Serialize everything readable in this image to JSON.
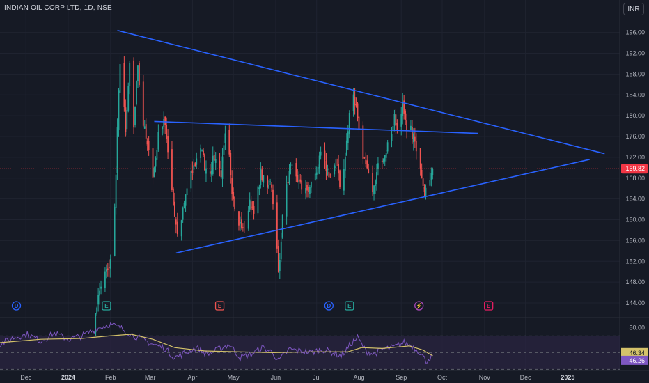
{
  "header": {
    "title": "INDIAN OIL CORP LTD, 1D, NSE",
    "currency": "INR"
  },
  "colors": {
    "up": "#26a69a",
    "down": "#ef5350",
    "trendline": "#2962ff",
    "rsi_line": "#7e57c2",
    "rsi_ma": "#d4c26a",
    "rsi_band": "#2a2440",
    "price_tag": "#f23645",
    "background": "#161a25",
    "grid": "#1f2330"
  },
  "chart_data": [
    {
      "type": "candlestick",
      "title": "INDIAN OIL CORP LTD, 1D, NSE",
      "ylim": [
        142,
        198.5
      ],
      "y_ticks": [
        144,
        148,
        152,
        156,
        160,
        164,
        168,
        172,
        176,
        180,
        184,
        188,
        192,
        196
      ],
      "y_tick_labels": [
        "144.00",
        "148.00",
        "152.00",
        "156.00",
        "160.00",
        "164.00",
        "168.00",
        "172.00",
        "176.00",
        "180.00",
        "184.00",
        "188.00",
        "192.00",
        "196.00"
      ],
      "x_labels": [
        {
          "label": "Dec",
          "day": 19
        },
        {
          "label": "2024",
          "day": 50,
          "bold": true
        },
        {
          "label": "Feb",
          "day": 81
        },
        {
          "label": "Mar",
          "day": 110
        },
        {
          "label": "Apr",
          "day": 141
        },
        {
          "label": "May",
          "day": 171
        },
        {
          "label": "Jun",
          "day": 202
        },
        {
          "label": "Jul",
          "day": 232
        },
        {
          "label": "Aug",
          "day": 263
        },
        {
          "label": "Sep",
          "day": 294
        },
        {
          "label": "Oct",
          "day": 324
        },
        {
          "label": "Nov",
          "day": 355
        },
        {
          "label": "Dec",
          "day": 385
        },
        {
          "label": "2025",
          "day": 416,
          "bold": true
        }
      ],
      "last_price": "169.82",
      "last_price_value": 169.82,
      "anchors": [
        {
          "d": 68,
          "p": 140
        },
        {
          "d": 72,
          "p": 145
        },
        {
          "d": 76,
          "p": 150
        },
        {
          "d": 80,
          "p": 150
        },
        {
          "d": 84,
          "p": 162
        },
        {
          "d": 87,
          "p": 185
        },
        {
          "d": 89,
          "p": 193
        },
        {
          "d": 92,
          "p": 176
        },
        {
          "d": 95,
          "p": 190
        },
        {
          "d": 98,
          "p": 178
        },
        {
          "d": 101,
          "p": 190
        },
        {
          "d": 104,
          "p": 180
        },
        {
          "d": 108,
          "p": 174
        },
        {
          "d": 112,
          "p": 168
        },
        {
          "d": 116,
          "p": 176
        },
        {
          "d": 120,
          "p": 179
        },
        {
          "d": 124,
          "p": 172
        },
        {
          "d": 127,
          "p": 163
        },
        {
          "d": 130,
          "p": 157
        },
        {
          "d": 133,
          "p": 160
        },
        {
          "d": 137,
          "p": 166
        },
        {
          "d": 142,
          "p": 170
        },
        {
          "d": 147,
          "p": 174
        },
        {
          "d": 152,
          "p": 168
        },
        {
          "d": 157,
          "p": 172
        },
        {
          "d": 162,
          "p": 169
        },
        {
          "d": 166,
          "p": 178
        },
        {
          "d": 170,
          "p": 166
        },
        {
          "d": 174,
          "p": 160
        },
        {
          "d": 178,
          "p": 158
        },
        {
          "d": 183,
          "p": 163
        },
        {
          "d": 187,
          "p": 162
        },
        {
          "d": 191,
          "p": 169
        },
        {
          "d": 195,
          "p": 166
        },
        {
          "d": 198,
          "p": 168
        },
        {
          "d": 201,
          "p": 162
        },
        {
          "d": 204,
          "p": 150
        },
        {
          "d": 207,
          "p": 160
        },
        {
          "d": 211,
          "p": 168
        },
        {
          "d": 215,
          "p": 170
        },
        {
          "d": 219,
          "p": 167
        },
        {
          "d": 223,
          "p": 165
        },
        {
          "d": 227,
          "p": 166
        },
        {
          "d": 231,
          "p": 169
        },
        {
          "d": 235,
          "p": 172
        },
        {
          "d": 239,
          "p": 170
        },
        {
          "d": 243,
          "p": 168
        },
        {
          "d": 247,
          "p": 171
        },
        {
          "d": 250,
          "p": 165
        },
        {
          "d": 253,
          "p": 172
        },
        {
          "d": 256,
          "p": 180
        },
        {
          "d": 259,
          "p": 184
        },
        {
          "d": 262,
          "p": 180
        },
        {
          "d": 265,
          "p": 174
        },
        {
          "d": 268,
          "p": 170
        },
        {
          "d": 271,
          "p": 167
        },
        {
          "d": 274,
          "p": 166
        },
        {
          "d": 277,
          "p": 170
        },
        {
          "d": 280,
          "p": 172
        },
        {
          "d": 283,
          "p": 174
        },
        {
          "d": 286,
          "p": 176
        },
        {
          "d": 289,
          "p": 180
        },
        {
          "d": 292,
          "p": 176
        },
        {
          "d": 295,
          "p": 182
        },
        {
          "d": 298,
          "p": 178
        },
        {
          "d": 301,
          "p": 177
        },
        {
          "d": 304,
          "p": 175
        },
        {
          "d": 307,
          "p": 172
        },
        {
          "d": 309,
          "p": 169
        },
        {
          "d": 311,
          "p": 165
        },
        {
          "d": 314,
          "p": 168
        },
        {
          "d": 317,
          "p": 169.82
        }
      ],
      "rsi": {
        "ylim": [
          37,
          87
        ],
        "y_ticks": [
          40,
          80
        ],
        "y_tick_labels": [
          "40.00",
          "80.00"
        ],
        "overbought": 70,
        "oversold": 30,
        "current_rsi": "46.34",
        "current_ma": "46.26",
        "rsi_anchors": [
          {
            "d": 0,
            "p": 60
          },
          {
            "d": 10,
            "p": 68
          },
          {
            "d": 20,
            "p": 72
          },
          {
            "d": 30,
            "p": 64
          },
          {
            "d": 40,
            "p": 73
          },
          {
            "d": 50,
            "p": 66
          },
          {
            "d": 60,
            "p": 70
          },
          {
            "d": 70,
            "p": 78
          },
          {
            "d": 80,
            "p": 84
          },
          {
            "d": 88,
            "p": 80
          },
          {
            "d": 96,
            "p": 72
          },
          {
            "d": 104,
            "p": 66
          },
          {
            "d": 112,
            "p": 60
          },
          {
            "d": 120,
            "p": 56
          },
          {
            "d": 128,
            "p": 44
          },
          {
            "d": 136,
            "p": 50
          },
          {
            "d": 144,
            "p": 56
          },
          {
            "d": 152,
            "p": 48
          },
          {
            "d": 160,
            "p": 54
          },
          {
            "d": 168,
            "p": 60
          },
          {
            "d": 176,
            "p": 44
          },
          {
            "d": 184,
            "p": 48
          },
          {
            "d": 192,
            "p": 56
          },
          {
            "d": 200,
            "p": 50
          },
          {
            "d": 204,
            "p": 40
          },
          {
            "d": 212,
            "p": 54
          },
          {
            "d": 220,
            "p": 52
          },
          {
            "d": 228,
            "p": 50
          },
          {
            "d": 236,
            "p": 54
          },
          {
            "d": 244,
            "p": 50
          },
          {
            "d": 250,
            "p": 46
          },
          {
            "d": 258,
            "p": 62
          },
          {
            "d": 262,
            "p": 68
          },
          {
            "d": 268,
            "p": 52
          },
          {
            "d": 274,
            "p": 48
          },
          {
            "d": 280,
            "p": 54
          },
          {
            "d": 288,
            "p": 56
          },
          {
            "d": 296,
            "p": 62
          },
          {
            "d": 302,
            "p": 58
          },
          {
            "d": 308,
            "p": 50
          },
          {
            "d": 312,
            "p": 40
          },
          {
            "d": 317,
            "p": 46.34
          }
        ],
        "ma_anchors": [
          {
            "d": 0,
            "p": 62
          },
          {
            "d": 30,
            "p": 66
          },
          {
            "d": 60,
            "p": 67
          },
          {
            "d": 80,
            "p": 70
          },
          {
            "d": 96,
            "p": 72
          },
          {
            "d": 112,
            "p": 66
          },
          {
            "d": 128,
            "p": 56
          },
          {
            "d": 150,
            "p": 52
          },
          {
            "d": 175,
            "p": 51
          },
          {
            "d": 200,
            "p": 50
          },
          {
            "d": 230,
            "p": 51
          },
          {
            "d": 255,
            "p": 51
          },
          {
            "d": 265,
            "p": 56
          },
          {
            "d": 280,
            "p": 55
          },
          {
            "d": 300,
            "p": 58
          },
          {
            "d": 310,
            "p": 53
          },
          {
            "d": 317,
            "p": 46.26
          }
        ]
      },
      "trendlines": [
        {
          "name": "upper-descending",
          "from": {
            "d": 86,
            "p": 196.4
          },
          "to": {
            "d": 443,
            "p": 172.7
          }
        },
        {
          "name": "lower-ascending",
          "from": {
            "d": 129,
            "p": 153.6
          },
          "to": {
            "d": 432,
            "p": 171.6
          }
        },
        {
          "name": "horizontal-resistance",
          "from": {
            "d": 113,
            "p": 178.9
          },
          "to": {
            "d": 350,
            "p": 176.6
          }
        }
      ],
      "events": [
        {
          "type": "D",
          "day": 12,
          "color": "#2962ff"
        },
        {
          "type": "E",
          "day": 78,
          "color": "#26a69a"
        },
        {
          "type": "E",
          "day": 161,
          "color": "#ef5350"
        },
        {
          "type": "D",
          "day": 241,
          "color": "#2962ff"
        },
        {
          "type": "E",
          "day": 256,
          "color": "#26a69a"
        },
        {
          "type": "⚡",
          "day": 307,
          "color": "#ab47bc"
        },
        {
          "type": "E",
          "day": 358,
          "color": "#e91e63"
        }
      ]
    }
  ]
}
